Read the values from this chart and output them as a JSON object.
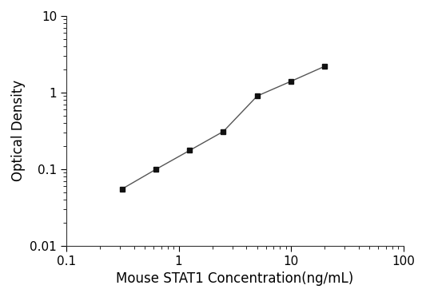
{
  "x": [
    0.313,
    0.625,
    1.25,
    2.5,
    5.0,
    10.0,
    20.0
  ],
  "y": [
    0.055,
    0.099,
    0.175,
    0.31,
    0.9,
    1.4,
    2.2
  ],
  "xlim": [
    0.1,
    100
  ],
  "ylim": [
    0.01,
    10
  ],
  "xlabel": "Mouse STAT1 Concentration(ng/mL)",
  "ylabel": "Optical Density",
  "line_color": "#555555",
  "marker": "s",
  "marker_color": "#111111",
  "marker_size": 5,
  "line_width": 1.0,
  "background_color": "#ffffff",
  "tick_fontsize": 11,
  "label_fontsize": 12,
  "xtick_labels": [
    "0.1",
    "1",
    "10",
    "100"
  ],
  "xtick_vals": [
    0.1,
    1,
    10,
    100
  ],
  "ytick_labels": [
    "0.01",
    "0.1",
    "1",
    "10"
  ],
  "ytick_vals": [
    0.01,
    0.1,
    1,
    10
  ]
}
